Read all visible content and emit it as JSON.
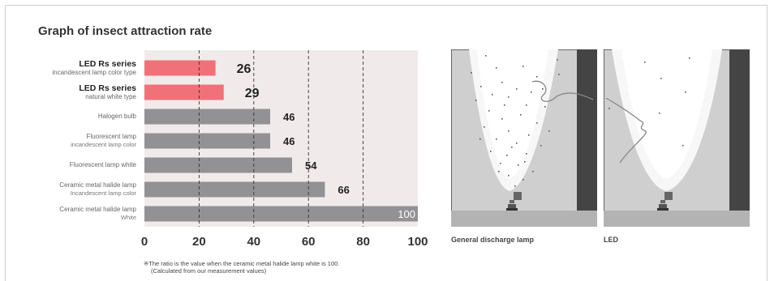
{
  "title": "Graph of insect attraction rate",
  "chart_data": {
    "type": "bar",
    "orientation": "horizontal",
    "categories": [
      {
        "line1": "LED Rs series",
        "line2": "incandescent lamp color type",
        "highlight": true
      },
      {
        "line1": "LED Rs series",
        "line2": "natural white type",
        "highlight": true
      },
      {
        "line1": "Halogen bulb",
        "line2": "",
        "highlight": false
      },
      {
        "line1": "Fluorescent lamp",
        "line2": "incandescent lamp color",
        "highlight": false
      },
      {
        "line1": "Fluorescent lamp white",
        "line2": "",
        "highlight": false
      },
      {
        "line1": "Ceramic metal halide lamp",
        "line2": "Incandescent lamp color",
        "highlight": false
      },
      {
        "line1": "Ceramic metal halide lamp",
        "line2": "White",
        "highlight": false
      }
    ],
    "values": [
      26,
      29,
      46,
      46,
      54,
      66,
      100
    ],
    "value_labels": [
      "26",
      "29",
      "46",
      "46",
      "54",
      "66",
      "100"
    ],
    "xlim": [
      0,
      100
    ],
    "xticks": [
      "0",
      "20",
      "40",
      "60",
      "80",
      "100"
    ],
    "grid": "dashed vertical",
    "colors": {
      "highlight": "#f07178",
      "normal": "#929295",
      "background": "#f0ebea"
    }
  },
  "note": {
    "line1": "※The ratio is the value when the ceramic metal halide lamp white is 100.",
    "line2": "(Calculated from our measurement values)"
  },
  "illustrations": [
    {
      "caption": "General discharge lamp",
      "insects": "many"
    },
    {
      "caption": "LED",
      "insects": "few"
    }
  ]
}
